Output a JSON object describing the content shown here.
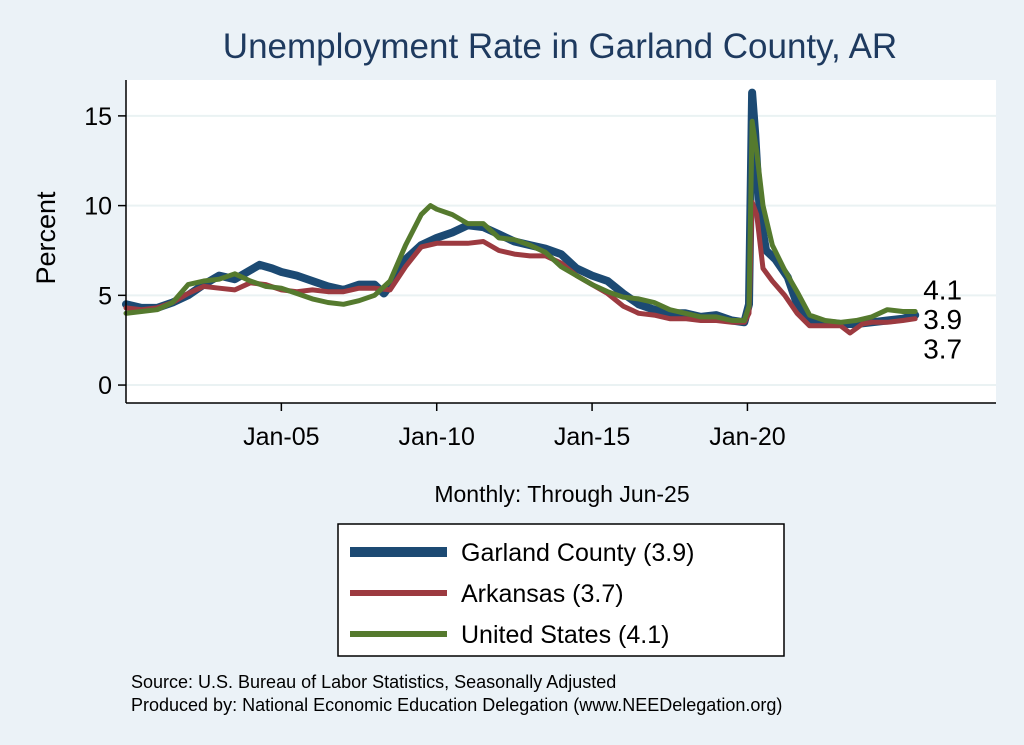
{
  "chart_data": {
    "type": "line",
    "title": "Unemployment Rate in Garland  County, AR",
    "xlabel": "Monthly: Through Jun-25",
    "ylabel": "Percent",
    "xlim": [
      2000.0,
      2028.0
    ],
    "ylim": [
      -1.0,
      17.0
    ],
    "yticks": [
      0,
      5,
      10,
      15
    ],
    "xticks": [
      {
        "value": 2005.0,
        "label": "Jan-05"
      },
      {
        "value": 2010.0,
        "label": "Jan-10"
      },
      {
        "value": 2015.0,
        "label": "Jan-15"
      },
      {
        "value": 2020.0,
        "label": "Jan-20"
      }
    ],
    "grid": true,
    "legend_position": "bottom",
    "series": [
      {
        "name": "Garland  County",
        "legend_label": "Garland  County (3.9)",
        "last_value": "3.9",
        "color": "#1c4a73",
        "points": [
          [
            2000.0,
            4.5
          ],
          [
            2000.5,
            4.3
          ],
          [
            2001.0,
            4.3
          ],
          [
            2001.5,
            4.6
          ],
          [
            2002.0,
            5.0
          ],
          [
            2002.5,
            5.6
          ],
          [
            2003.0,
            6.1
          ],
          [
            2003.5,
            5.9
          ],
          [
            2004.0,
            6.4
          ],
          [
            2004.3,
            6.7
          ],
          [
            2004.7,
            6.5
          ],
          [
            2005.0,
            6.3
          ],
          [
            2005.5,
            6.1
          ],
          [
            2006.0,
            5.8
          ],
          [
            2006.5,
            5.5
          ],
          [
            2007.0,
            5.3
          ],
          [
            2007.5,
            5.6
          ],
          [
            2008.0,
            5.6
          ],
          [
            2008.3,
            5.1
          ],
          [
            2008.7,
            6.0
          ],
          [
            2009.0,
            7.0
          ],
          [
            2009.5,
            7.8
          ],
          [
            2010.0,
            8.2
          ],
          [
            2010.5,
            8.5
          ],
          [
            2011.0,
            8.9
          ],
          [
            2011.5,
            8.8
          ],
          [
            2012.0,
            8.4
          ],
          [
            2012.5,
            8.0
          ],
          [
            2013.0,
            7.8
          ],
          [
            2013.5,
            7.6
          ],
          [
            2014.0,
            7.3
          ],
          [
            2014.5,
            6.5
          ],
          [
            2015.0,
            6.1
          ],
          [
            2015.5,
            5.8
          ],
          [
            2016.0,
            5.1
          ],
          [
            2016.5,
            4.5
          ],
          [
            2017.0,
            4.2
          ],
          [
            2017.5,
            4.0
          ],
          [
            2018.0,
            4.0
          ],
          [
            2018.5,
            3.8
          ],
          [
            2019.0,
            3.9
          ],
          [
            2019.5,
            3.6
          ],
          [
            2019.9,
            3.5
          ],
          [
            2020.05,
            4.5
          ],
          [
            2020.15,
            16.3
          ],
          [
            2020.25,
            14.0
          ],
          [
            2020.4,
            9.5
          ],
          [
            2020.6,
            7.5
          ],
          [
            2020.9,
            7.0
          ],
          [
            2021.3,
            6.0
          ],
          [
            2021.6,
            4.5
          ],
          [
            2022.0,
            3.5
          ],
          [
            2022.5,
            3.5
          ],
          [
            2023.0,
            3.4
          ],
          [
            2023.5,
            3.4
          ],
          [
            2024.0,
            3.5
          ],
          [
            2024.5,
            3.6
          ],
          [
            2025.0,
            3.7
          ],
          [
            2025.4,
            3.9
          ]
        ]
      },
      {
        "name": "Arkansas",
        "legend_label": "Arkansas (3.7)",
        "last_value": "3.7",
        "color": "#9c3a40",
        "points": [
          [
            2000.0,
            4.3
          ],
          [
            2000.5,
            4.2
          ],
          [
            2001.0,
            4.3
          ],
          [
            2001.5,
            4.6
          ],
          [
            2002.0,
            5.1
          ],
          [
            2002.5,
            5.5
          ],
          [
            2003.0,
            5.4
          ],
          [
            2003.5,
            5.3
          ],
          [
            2004.0,
            5.7
          ],
          [
            2004.5,
            5.6
          ],
          [
            2005.0,
            5.3
          ],
          [
            2005.5,
            5.2
          ],
          [
            2006.0,
            5.3
          ],
          [
            2006.5,
            5.2
          ],
          [
            2007.0,
            5.2
          ],
          [
            2007.5,
            5.4
          ],
          [
            2008.0,
            5.4
          ],
          [
            2008.5,
            5.3
          ],
          [
            2009.0,
            6.6
          ],
          [
            2009.5,
            7.7
          ],
          [
            2010.0,
            7.9
          ],
          [
            2010.5,
            7.9
          ],
          [
            2011.0,
            7.9
          ],
          [
            2011.5,
            8.0
          ],
          [
            2012.0,
            7.5
          ],
          [
            2012.5,
            7.3
          ],
          [
            2013.0,
            7.2
          ],
          [
            2013.5,
            7.2
          ],
          [
            2014.0,
            6.8
          ],
          [
            2014.5,
            6.1
          ],
          [
            2015.0,
            5.6
          ],
          [
            2015.5,
            5.1
          ],
          [
            2016.0,
            4.4
          ],
          [
            2016.5,
            4.0
          ],
          [
            2017.0,
            3.9
          ],
          [
            2017.5,
            3.7
          ],
          [
            2018.0,
            3.7
          ],
          [
            2018.5,
            3.6
          ],
          [
            2019.0,
            3.6
          ],
          [
            2019.5,
            3.5
          ],
          [
            2019.9,
            3.5
          ],
          [
            2020.05,
            4.0
          ],
          [
            2020.15,
            10.2
          ],
          [
            2020.3,
            9.5
          ],
          [
            2020.5,
            6.5
          ],
          [
            2020.8,
            5.8
          ],
          [
            2021.2,
            5.0
          ],
          [
            2021.6,
            4.0
          ],
          [
            2022.0,
            3.3
          ],
          [
            2022.5,
            3.3
          ],
          [
            2023.0,
            3.3
          ],
          [
            2023.3,
            2.9
          ],
          [
            2023.7,
            3.4
          ],
          [
            2024.0,
            3.5
          ],
          [
            2024.5,
            3.5
          ],
          [
            2025.0,
            3.6
          ],
          [
            2025.4,
            3.7
          ]
        ]
      },
      {
        "name": "United States",
        "legend_label": "United States (4.1)",
        "last_value": "4.1",
        "color": "#557a2e",
        "points": [
          [
            2000.0,
            4.0
          ],
          [
            2000.5,
            4.1
          ],
          [
            2001.0,
            4.2
          ],
          [
            2001.5,
            4.6
          ],
          [
            2002.0,
            5.6
          ],
          [
            2002.5,
            5.8
          ],
          [
            2003.0,
            5.9
          ],
          [
            2003.5,
            6.2
          ],
          [
            2004.0,
            5.8
          ],
          [
            2004.5,
            5.5
          ],
          [
            2005.0,
            5.4
          ],
          [
            2005.5,
            5.1
          ],
          [
            2006.0,
            4.8
          ],
          [
            2006.5,
            4.6
          ],
          [
            2007.0,
            4.5
          ],
          [
            2007.5,
            4.7
          ],
          [
            2008.0,
            5.0
          ],
          [
            2008.5,
            5.8
          ],
          [
            2009.0,
            7.8
          ],
          [
            2009.5,
            9.5
          ],
          [
            2009.8,
            10.0
          ],
          [
            2010.0,
            9.8
          ],
          [
            2010.5,
            9.5
          ],
          [
            2011.0,
            9.0
          ],
          [
            2011.5,
            9.0
          ],
          [
            2012.0,
            8.2
          ],
          [
            2012.5,
            8.1
          ],
          [
            2013.0,
            7.8
          ],
          [
            2013.5,
            7.4
          ],
          [
            2014.0,
            6.6
          ],
          [
            2014.5,
            6.1
          ],
          [
            2015.0,
            5.6
          ],
          [
            2015.5,
            5.2
          ],
          [
            2016.0,
            4.9
          ],
          [
            2016.5,
            4.8
          ],
          [
            2017.0,
            4.6
          ],
          [
            2017.5,
            4.2
          ],
          [
            2018.0,
            4.0
          ],
          [
            2018.5,
            3.8
          ],
          [
            2019.0,
            3.8
          ],
          [
            2019.5,
            3.6
          ],
          [
            2019.9,
            3.6
          ],
          [
            2020.05,
            4.4
          ],
          [
            2020.15,
            14.7
          ],
          [
            2020.3,
            13.0
          ],
          [
            2020.5,
            10.0
          ],
          [
            2020.8,
            7.8
          ],
          [
            2021.2,
            6.4
          ],
          [
            2021.6,
            5.2
          ],
          [
            2022.0,
            3.9
          ],
          [
            2022.5,
            3.6
          ],
          [
            2023.0,
            3.5
          ],
          [
            2023.5,
            3.6
          ],
          [
            2024.0,
            3.8
          ],
          [
            2024.5,
            4.2
          ],
          [
            2025.0,
            4.1
          ],
          [
            2025.4,
            4.1
          ]
        ]
      }
    ],
    "footnote_lines": [
      "Source: U.S. Bureau of Labor Statistics, Seasonally Adjusted",
      "Produced by: National Economic Education Delegation (www.NEEDelegation.org)"
    ]
  },
  "colors": {
    "page_background": "#ebf2f7",
    "plot_background": "#ffffff",
    "grid": "#eaf2f3",
    "title": "#1e3a5f",
    "axis": "#000000"
  }
}
